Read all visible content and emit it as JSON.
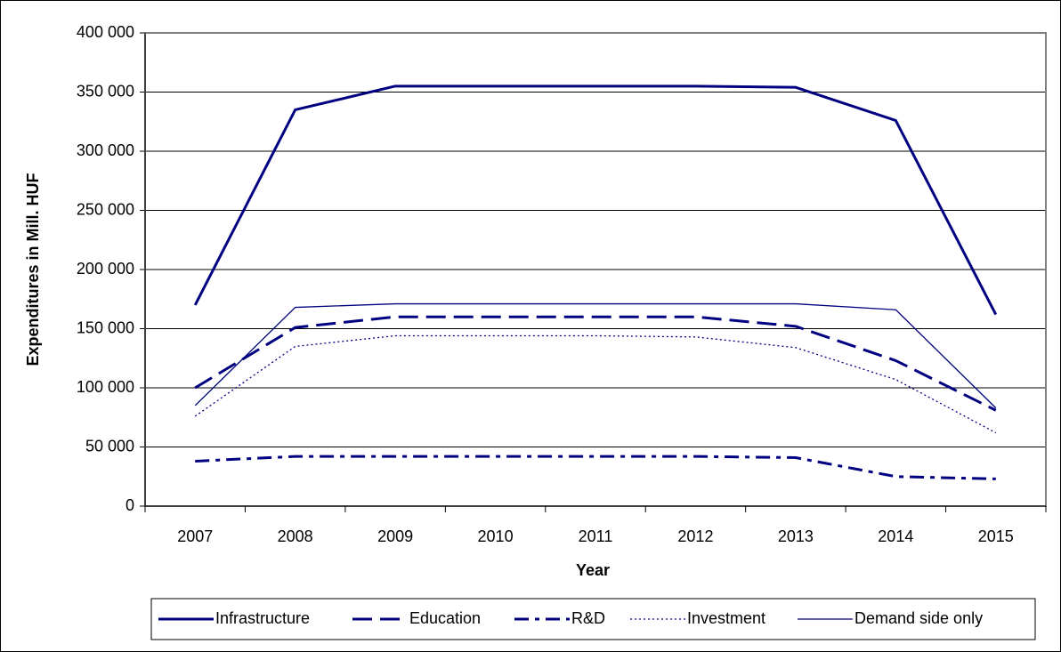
{
  "chart_data": {
    "type": "line",
    "x_label": "Year",
    "y_label": "Expenditures in Mill. HUF",
    "categories": [
      "2007",
      "2008",
      "2009",
      "2010",
      "2011",
      "2012",
      "2013",
      "2014",
      "2015"
    ],
    "series": [
      {
        "name": "Infrastructure",
        "color": "#000080",
        "dash": "solid",
        "width": 3,
        "values": [
          170000,
          335000,
          355000,
          355000,
          355000,
          355000,
          354000,
          326000,
          162000
        ]
      },
      {
        "name": "Education",
        "color": "#000080",
        "dash": "dash",
        "width": 3,
        "values": [
          100000,
          151000,
          160000,
          160000,
          160000,
          160000,
          152000,
          123000,
          81000
        ]
      },
      {
        "name": "R&D",
        "color": "#000080",
        "dash": "dashdot",
        "width": 3,
        "values": [
          38000,
          42000,
          42000,
          42000,
          42000,
          42000,
          41000,
          25000,
          23000
        ]
      },
      {
        "name": "Investment",
        "color": "#000080",
        "dash": "dot",
        "width": 1.3,
        "values": [
          76000,
          135000,
          144000,
          144000,
          144000,
          143000,
          134000,
          107000,
          62000
        ]
      },
      {
        "name": "Demand side only",
        "color": "#000080",
        "dash": "solid",
        "width": 1.3,
        "values": [
          85000,
          168000,
          171000,
          171000,
          171000,
          171000,
          171000,
          166000,
          83000
        ]
      }
    ],
    "ylim": [
      0,
      400000
    ],
    "yticks": [
      {
        "value": 0,
        "label": "0"
      },
      {
        "value": 50000,
        "label": "50 000"
      },
      {
        "value": 100000,
        "label": "100 000"
      },
      {
        "value": 150000,
        "label": "150 000"
      },
      {
        "value": 200000,
        "label": "200 000"
      },
      {
        "value": 250000,
        "label": "250 000"
      },
      {
        "value": 300000,
        "label": "300 000"
      },
      {
        "value": 350000,
        "label": "350 000"
      },
      {
        "value": 400000,
        "label": "400 000"
      }
    ],
    "grid": true,
    "legend": "bottom"
  }
}
